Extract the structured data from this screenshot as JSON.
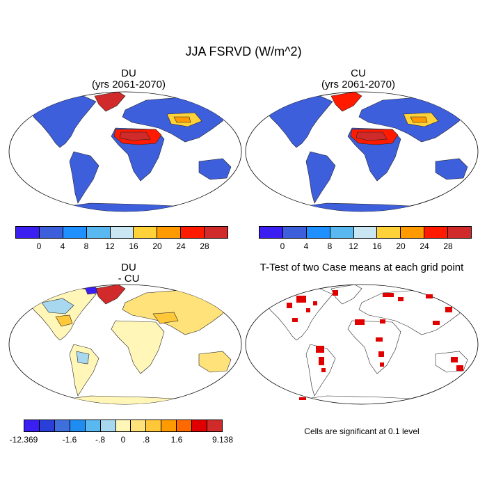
{
  "title": "JJA FSRVD (W/m^2)",
  "panels": [
    {
      "title": "DU",
      "subtitle": "(yrs 2061-2070)"
    },
    {
      "title": "CU",
      "subtitle": "(yrs 2061-2070)"
    },
    {
      "title": "DU",
      "subtitle": "- CU"
    },
    {
      "title": "T-Test of two Case means at each grid point",
      "subtitle": ""
    }
  ],
  "colorbar_main": {
    "colors": [
      "#3a1ef2",
      "#3e5fdc",
      "#1e90ff",
      "#5ab8f0",
      "#c9e6f2",
      "#ffd23a",
      "#ff9a00",
      "#ff1a00",
      "#d02a2a"
    ],
    "ticks": [
      "0",
      "4",
      "8",
      "12",
      "16",
      "20",
      "24",
      "28"
    ]
  },
  "colorbar_diff": {
    "colors": [
      "#3a1ef2",
      "#2a3ed8",
      "#3e6fdc",
      "#1e8cf0",
      "#5ab8f0",
      "#a8d8f0",
      "#fff6b8",
      "#ffe27a",
      "#ffc83a",
      "#ff9a00",
      "#ff6a00",
      "#e00000",
      "#d02a2a"
    ],
    "ticks": [
      "-12.369",
      "-1.6",
      "-.8",
      "0",
      ".8",
      "1.6",
      "9.138"
    ]
  },
  "significance_note": "Cells are significant at 0.1 level",
  "chart_data": [
    {
      "type": "heatmap",
      "title": "DU",
      "subtitle": "(yrs 2061-2070)",
      "levels": [
        0,
        4,
        8,
        12,
        16,
        20,
        24,
        28
      ],
      "units": "W/m^2"
    },
    {
      "type": "heatmap",
      "title": "CU",
      "subtitle": "(yrs 2061-2070)",
      "levels": [
        0,
        4,
        8,
        12,
        16,
        20,
        24,
        28
      ],
      "units": "W/m^2"
    },
    {
      "type": "heatmap",
      "title": "DU",
      "subtitle": "- CU",
      "levels_labeled": [
        "-12.369",
        "-1.6",
        "-.8",
        "0",
        ".8",
        "1.6",
        "9.138"
      ],
      "units": "W/m^2"
    },
    {
      "type": "heatmap",
      "title": "T-Test of two Case means at each grid point",
      "significance_level": 0.1
    }
  ]
}
